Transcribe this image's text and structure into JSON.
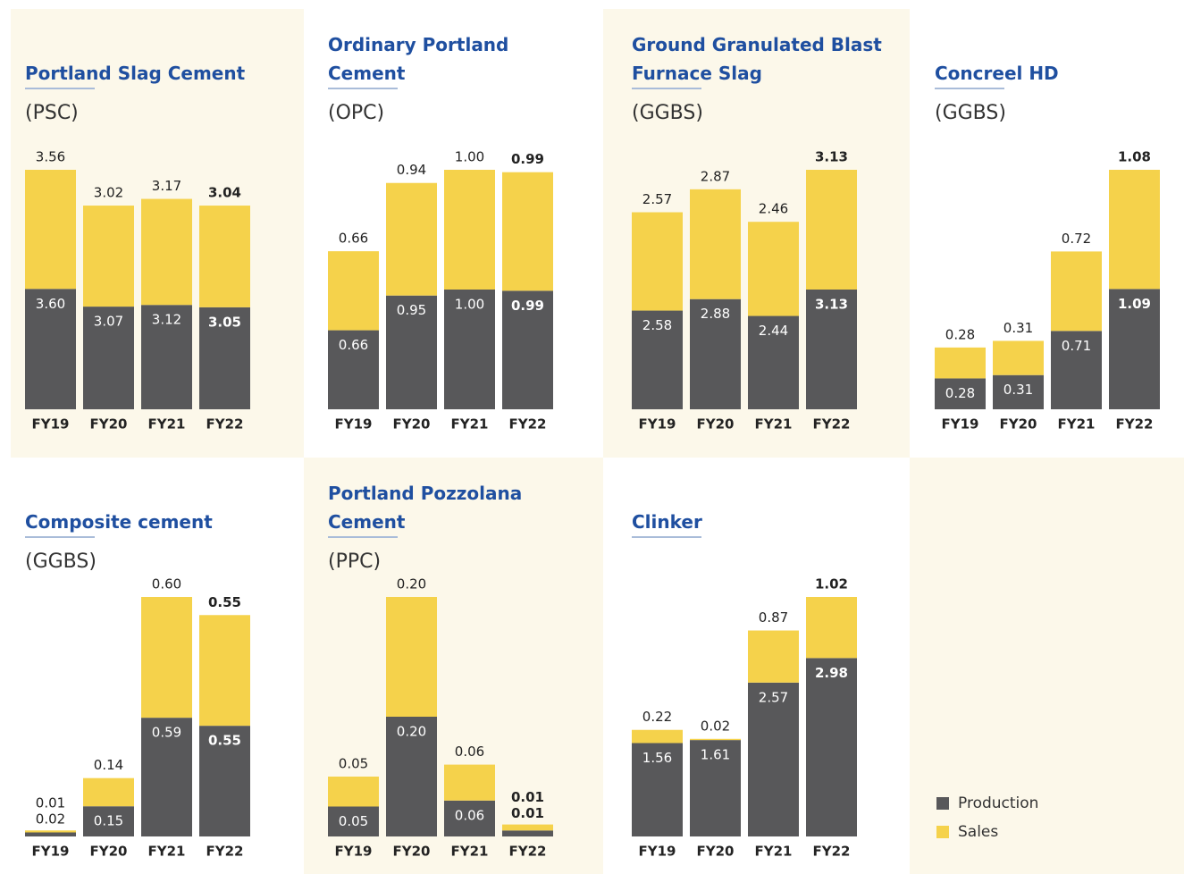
{
  "chart_data": [
    {
      "type": "stacked-bar",
      "title": "Portland Slag Cement",
      "subtitle": "(PSC)",
      "categories": [
        "FY19",
        "FY20",
        "FY21",
        "FY22"
      ],
      "series": [
        {
          "name": "Production",
          "color": "#58585a",
          "values": [
            3.6,
            3.07,
            3.12,
            3.05
          ],
          "value_labels": [
            "3.60",
            "3.07",
            "3.12",
            "3.05"
          ]
        },
        {
          "name": "Sales",
          "color": "#f5d24b",
          "values": [
            3.56,
            3.02,
            3.17,
            3.04
          ],
          "value_labels": [
            "3.56",
            "3.02",
            "3.17",
            "3.04"
          ]
        }
      ]
    },
    {
      "type": "stacked-bar",
      "title": "Ordinary Portland Cement",
      "subtitle": "(OPC)",
      "categories": [
        "FY19",
        "FY20",
        "FY21",
        "FY22"
      ],
      "series": [
        {
          "name": "Production",
          "color": "#58585a",
          "values": [
            0.66,
            0.95,
            1.0,
            0.99
          ],
          "value_labels": [
            "0.66",
            "0.95",
            "1.00",
            "0.99"
          ]
        },
        {
          "name": "Sales",
          "color": "#f5d24b",
          "values": [
            0.66,
            0.94,
            1.0,
            0.99
          ],
          "value_labels": [
            "0.66",
            "0.94",
            "1.00",
            "0.99"
          ]
        }
      ]
    },
    {
      "type": "stacked-bar",
      "title": "Ground Granulated Blast Furnace Slag",
      "subtitle": "(GGBS)",
      "categories": [
        "FY19",
        "FY20",
        "FY21",
        "FY22"
      ],
      "series": [
        {
          "name": "Production",
          "color": "#58585a",
          "values": [
            2.58,
            2.88,
            2.44,
            3.13
          ],
          "value_labels": [
            "2.58",
            "2.88",
            "2.44",
            "3.13"
          ]
        },
        {
          "name": "Sales",
          "color": "#f5d24b",
          "values": [
            2.57,
            2.87,
            2.46,
            3.13
          ],
          "value_labels": [
            "2.57",
            "2.87",
            "2.46",
            "3.13"
          ]
        }
      ]
    },
    {
      "type": "stacked-bar",
      "title": "Concreel HD",
      "subtitle": "(GGBS)",
      "categories": [
        "FY19",
        "FY20",
        "FY21",
        "FY22"
      ],
      "series": [
        {
          "name": "Production",
          "color": "#58585a",
          "values": [
            0.28,
            0.31,
            0.71,
            1.09
          ],
          "value_labels": [
            "0.28",
            "0.31",
            "0.71",
            "1.09"
          ]
        },
        {
          "name": "Sales",
          "color": "#f5d24b",
          "values": [
            0.28,
            0.31,
            0.72,
            1.08
          ],
          "value_labels": [
            "0.28",
            "0.31",
            "0.72",
            "1.08"
          ]
        }
      ]
    },
    {
      "type": "stacked-bar",
      "title": "Composite cement",
      "subtitle": "(GGBS)",
      "categories": [
        "FY19",
        "FY20",
        "FY21",
        "FY22"
      ],
      "series": [
        {
          "name": "Production",
          "color": "#58585a",
          "values": [
            0.02,
            0.15,
            0.59,
            0.55
          ],
          "value_labels": [
            "0.02",
            "0.15",
            "0.59",
            "0.55"
          ]
        },
        {
          "name": "Sales",
          "color": "#f5d24b",
          "values": [
            0.01,
            0.14,
            0.6,
            0.55
          ],
          "value_labels": [
            "0.01",
            "0.14",
            "0.60",
            "0.55"
          ]
        }
      ]
    },
    {
      "type": "stacked-bar",
      "title": "Portland Pozzolana Cement",
      "subtitle": "(PPC)",
      "categories": [
        "FY19",
        "FY20",
        "FY21",
        "FY22"
      ],
      "series": [
        {
          "name": "Production",
          "color": "#58585a",
          "values": [
            0.05,
            0.2,
            0.06,
            0.01
          ],
          "value_labels": [
            "0.05",
            "0.20",
            "0.06",
            "0.01"
          ]
        },
        {
          "name": "Sales",
          "color": "#f5d24b",
          "values": [
            0.05,
            0.2,
            0.06,
            0.01
          ],
          "value_labels": [
            "0.05",
            "0.20",
            "0.06",
            "0.01"
          ]
        }
      ]
    },
    {
      "type": "stacked-bar",
      "title": "Clinker",
      "categories": [
        "FY19",
        "FY20",
        "FY21",
        "FY22"
      ],
      "series": [
        {
          "name": "Production",
          "color": "#58585a",
          "values": [
            1.56,
            1.61,
            2.57,
            2.98
          ],
          "value_labels": [
            "1.56",
            "1.61",
            "2.57",
            "2.98"
          ]
        },
        {
          "name": "Sales",
          "color": "#f5d24b",
          "values": [
            0.22,
            0.02,
            0.87,
            1.02
          ],
          "value_labels": [
            "0.22",
            "0.02",
            "0.87",
            "1.02"
          ]
        }
      ]
    }
  ]
}
